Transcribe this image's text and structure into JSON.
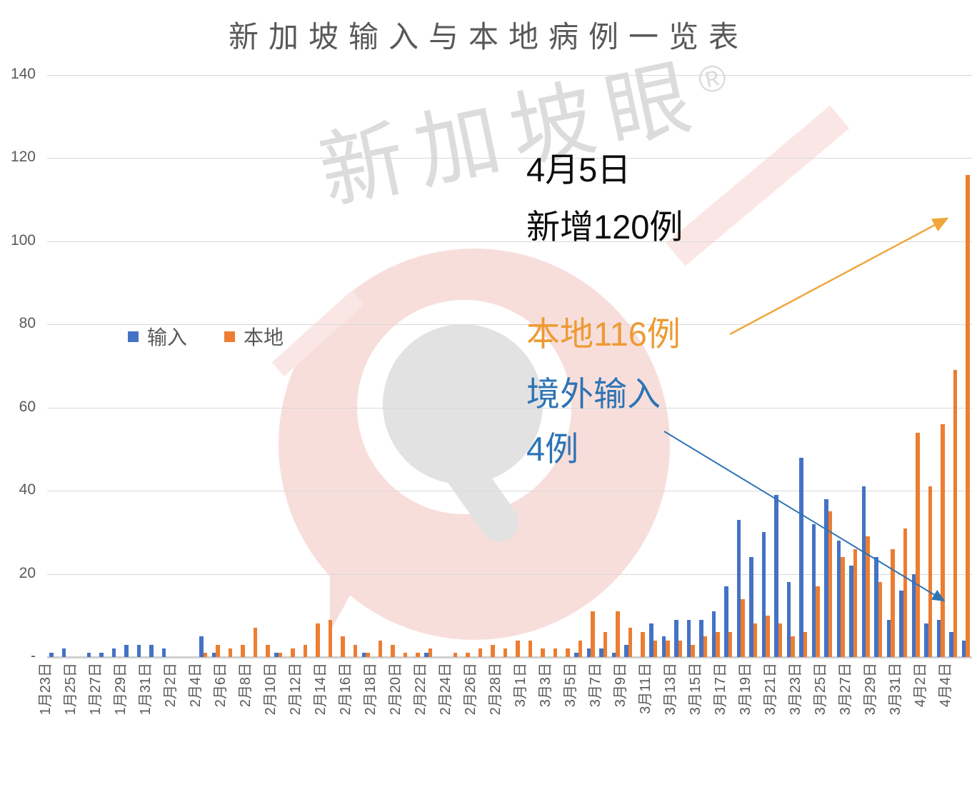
{
  "title": "新加坡输入与本地病例一览表",
  "legend": {
    "imported": "输入",
    "local": "本地"
  },
  "annotations": {
    "headline_line1": "4月5日",
    "headline_line2": "新增120例",
    "local_note": "本地116例",
    "imported_note_line1": "境外输入",
    "imported_note_line2": "4例"
  },
  "watermark": {
    "text": "新加坡眼",
    "registered": "®"
  },
  "colors": {
    "imported_bar": "#4472C4",
    "local_bar": "#ED7D31",
    "title_text": "#595959",
    "axis_text": "#595959",
    "gridline": "#D9D9D9",
    "annotation_black": "#0D0D0D",
    "annotation_orange": "#ED9B33",
    "annotation_blue": "#2E74B5",
    "arrow_orange": "#EFA73C",
    "arrow_blue": "#2E74B5"
  },
  "y_axis": {
    "ticks": [
      "140",
      "120",
      "100",
      "80",
      "60",
      "40",
      "20",
      "-"
    ],
    "max": 140,
    "step": 20
  },
  "chart_data": {
    "type": "bar",
    "title": "新加坡输入与本地病例一览表",
    "xlabel": "",
    "ylabel": "",
    "ylim": [
      0,
      140
    ],
    "grid": true,
    "legend_position": "left-middle",
    "x_label_every": 2,
    "categories": [
      "1月23日",
      "1月24日",
      "1月25日",
      "1月26日",
      "1月27日",
      "1月28日",
      "1月29日",
      "1月30日",
      "1月31日",
      "2月1日",
      "2月2日",
      "2月3日",
      "2月4日",
      "2月5日",
      "2月6日",
      "2月7日",
      "2月8日",
      "2月9日",
      "2月10日",
      "2月11日",
      "2月12日",
      "2月13日",
      "2月14日",
      "2月15日",
      "2月16日",
      "2月17日",
      "2月18日",
      "2月19日",
      "2月20日",
      "2月21日",
      "2月22日",
      "2月23日",
      "2月24日",
      "2月25日",
      "2月26日",
      "2月27日",
      "2月28日",
      "2月29日",
      "3月1日",
      "3月2日",
      "3月3日",
      "3月4日",
      "3月5日",
      "3月6日",
      "3月7日",
      "3月8日",
      "3月9日",
      "3月10日",
      "3月11日",
      "3月12日",
      "3月13日",
      "3月14日",
      "3月15日",
      "3月16日",
      "3月17日",
      "3月18日",
      "3月19日",
      "3月20日",
      "3月21日",
      "3月22日",
      "3月23日",
      "3月24日",
      "3月25日",
      "3月26日",
      "3月27日",
      "3月28日",
      "3月29日",
      "3月30日",
      "3月31日",
      "4月1日",
      "4月2日",
      "4月3日",
      "4月4日",
      "4月5日"
    ],
    "series": [
      {
        "name": "输入",
        "color": "#4472C4",
        "values": [
          1,
          2,
          0,
          1,
          1,
          2,
          3,
          3,
          3,
          2,
          0,
          0,
          5,
          1,
          0,
          0,
          0,
          0,
          1,
          0,
          0,
          0,
          0,
          0,
          0,
          1,
          0,
          0,
          0,
          0,
          1,
          0,
          0,
          0,
          0,
          0,
          0,
          0,
          0,
          0,
          0,
          0,
          1,
          2,
          2,
          1,
          3,
          0,
          8,
          5,
          9,
          9,
          9,
          11,
          17,
          33,
          24,
          30,
          39,
          18,
          48,
          32,
          38,
          28,
          22,
          41,
          24,
          9,
          16,
          20,
          8,
          9,
          6,
          4
        ]
      },
      {
        "name": "本地",
        "color": "#ED7D31",
        "values": [
          0,
          0,
          0,
          0,
          0,
          0,
          0,
          0,
          0,
          0,
          0,
          0,
          1,
          3,
          2,
          3,
          7,
          3,
          1,
          2,
          3,
          8,
          9,
          5,
          3,
          1,
          4,
          3,
          1,
          1,
          2,
          0,
          1,
          1,
          2,
          3,
          2,
          4,
          4,
          2,
          2,
          2,
          4,
          11,
          6,
          11,
          7,
          6,
          4,
          4,
          4,
          3,
          5,
          6,
          6,
          14,
          8,
          10,
          8,
          5,
          6,
          17,
          35,
          24,
          26,
          29,
          18,
          26,
          31,
          54,
          41,
          56,
          69,
          116
        ]
      }
    ]
  }
}
